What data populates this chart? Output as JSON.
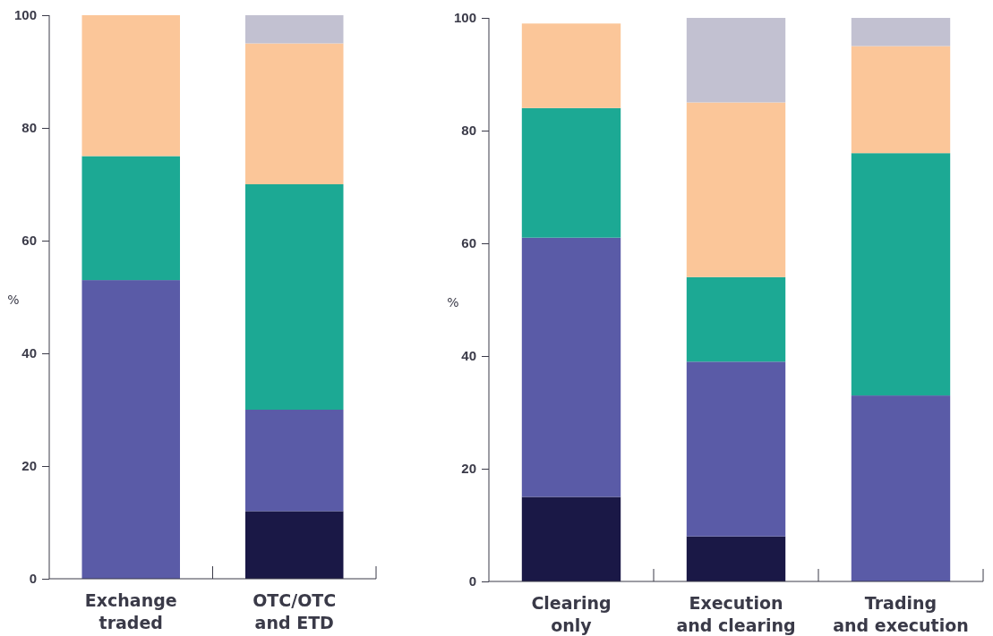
{
  "chart_data": [
    {
      "type": "bar",
      "stacked": true,
      "ylabel": "%",
      "categories": [
        "Exchange\ntraded",
        "OTC/OTC\nand ETD"
      ],
      "ylim": [
        0,
        100
      ],
      "yticks": [
        0,
        20,
        40,
        60,
        80,
        100
      ],
      "series": [
        {
          "color": "#1a1846",
          "values": [
            0,
            12
          ]
        },
        {
          "color": "#5a5ba7",
          "values": [
            53,
            18
          ]
        },
        {
          "color": "#1ca994",
          "values": [
            22,
            40
          ]
        },
        {
          "color": "#fbc699",
          "values": [
            25,
            25
          ]
        },
        {
          "color": "#c2c1d1",
          "values": [
            0,
            5
          ]
        }
      ]
    },
    {
      "type": "bar",
      "stacked": true,
      "ylabel": "%",
      "categories": [
        "Clearing\nonly",
        "Execution\nand clearing",
        "Trading\nand execution"
      ],
      "ylim": [
        0,
        100
      ],
      "yticks": [
        0,
        20,
        40,
        60,
        80,
        100
      ],
      "series": [
        {
          "color": "#1a1846",
          "values": [
            15,
            8,
            0
          ]
        },
        {
          "color": "#5a5ba7",
          "values": [
            46,
            31,
            33
          ]
        },
        {
          "color": "#1ca994",
          "values": [
            23,
            15,
            43
          ]
        },
        {
          "color": "#fbc699",
          "values": [
            15,
            31,
            19
          ]
        },
        {
          "color": "#c2c1d1",
          "values": [
            0,
            15,
            5
          ]
        }
      ]
    }
  ]
}
